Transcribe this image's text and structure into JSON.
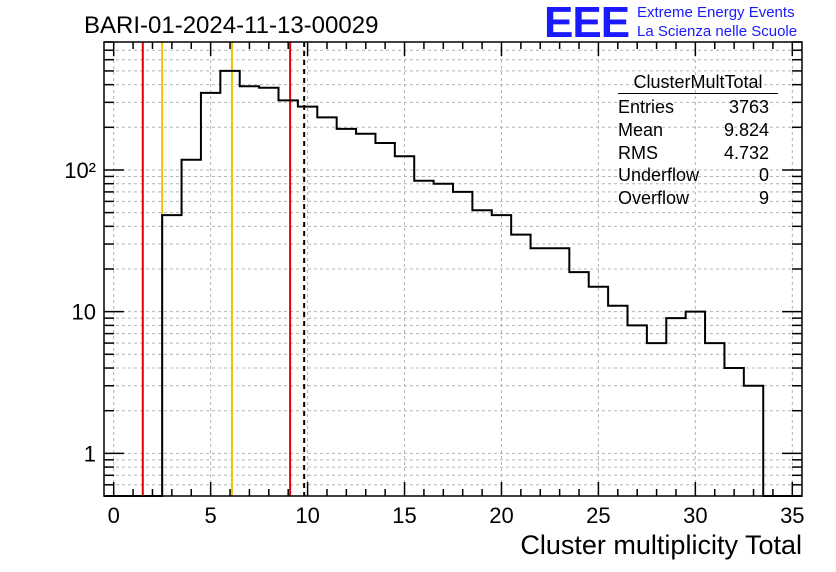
{
  "header": {
    "title": "BARI-01-2024-11-13-00029",
    "logo_text": "EEE",
    "logo_line1": "Extreme Energy Events",
    "logo_line2": "La Scienza nelle Scuole"
  },
  "stats_box": {
    "title": "ClusterMultTotal",
    "rows": [
      {
        "label": "Entries",
        "value": "3763"
      },
      {
        "label": "Mean",
        "value": "9.824"
      },
      {
        "label": "RMS",
        "value": "4.732"
      },
      {
        "label": "Underflow",
        "value": "0"
      },
      {
        "label": "Overflow",
        "value": "9"
      }
    ]
  },
  "chart_data": {
    "type": "histogram",
    "xlabel": "Cluster multiplicity Total",
    "ylabel": "",
    "xlim": [
      -0.5,
      35.5
    ],
    "ylim": [
      0.5,
      800
    ],
    "yscale": "log",
    "grid": true,
    "bin_edges": [
      -0.5,
      0.5,
      1.5,
      2.5,
      3.5,
      4.5,
      5.5,
      6.5,
      7.5,
      8.5,
      9.5,
      10.5,
      11.5,
      12.5,
      13.5,
      14.5,
      15.5,
      16.5,
      17.5,
      18.5,
      19.5,
      20.5,
      21.5,
      22.5,
      23.5,
      24.5,
      25.5,
      26.5,
      27.5,
      28.5,
      29.5,
      30.5,
      31.5,
      32.5,
      33.5,
      34.5,
      35.5
    ],
    "values": [
      0,
      0,
      0,
      48,
      118,
      350,
      500,
      390,
      380,
      310,
      280,
      235,
      195,
      180,
      155,
      125,
      84,
      80,
      70,
      52,
      48,
      35,
      28,
      28,
      19,
      15,
      11,
      8,
      6,
      9,
      10,
      6,
      4,
      3,
      0,
      0
    ],
    "x_ticks": [
      0,
      5,
      10,
      15,
      20,
      25,
      30,
      35
    ],
    "y_ticks": [
      {
        "value": 1,
        "label": "1"
      },
      {
        "value": 10,
        "label": "10"
      },
      {
        "value": 100,
        "label": "10²"
      }
    ],
    "vertical_lines": [
      {
        "x": 1.5,
        "color": "#e00000",
        "style": "solid"
      },
      {
        "x": 2.5,
        "color": "#f2c200",
        "style": "solid"
      },
      {
        "x": 6.1,
        "color": "#f2c200",
        "style": "solid"
      },
      {
        "x": 9.1,
        "color": "#e00000",
        "style": "solid"
      },
      {
        "x": 9.824,
        "color": "#000000",
        "style": "dashed"
      }
    ]
  },
  "colors": {
    "logo": "#1a1aff",
    "histogram": "#000000",
    "grid": "#b4b4b4"
  }
}
